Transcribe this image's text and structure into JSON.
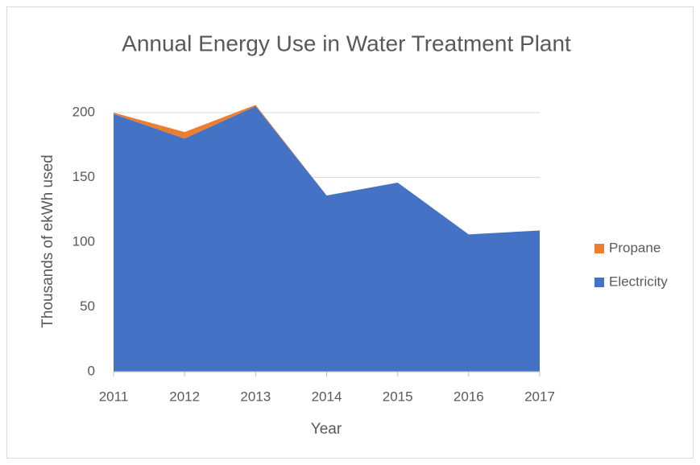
{
  "chart_data": {
    "type": "stacked_area",
    "title": "Annual Energy Use in Water Treatment Plant",
    "x_label": "Year",
    "y_label": "Thousands of ekWh used",
    "categories": [
      "2011",
      "2012",
      "2013",
      "2014",
      "2015",
      "2016",
      "2017"
    ],
    "series": [
      {
        "name": "Electricity",
        "color": "#4472c4",
        "values": [
          199,
          180,
          205,
          136,
          146,
          106,
          109
        ]
      },
      {
        "name": "Propane",
        "color": "#ed7d31",
        "values": [
          1,
          5,
          1,
          0,
          0,
          0,
          0
        ]
      }
    ],
    "ylim": [
      0,
      200
    ],
    "yticks": [
      0,
      50,
      100,
      150,
      200
    ],
    "grid": true,
    "legend": "right"
  }
}
